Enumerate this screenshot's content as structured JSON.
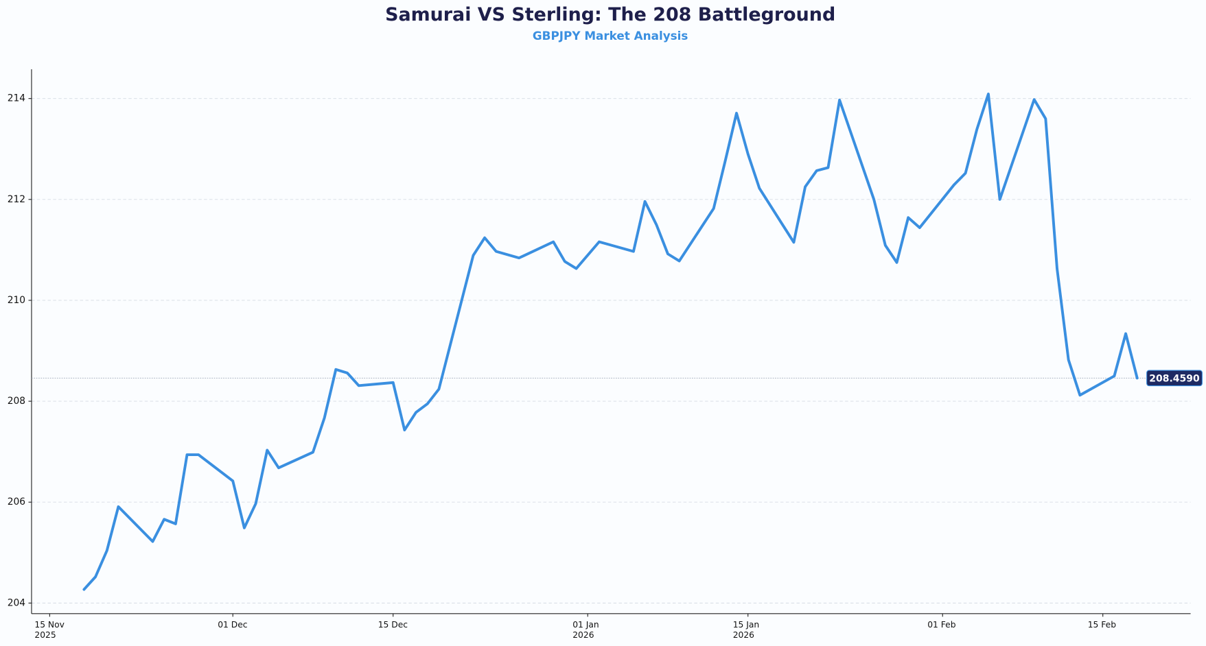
{
  "chart_data": {
    "type": "line",
    "title": "Samurai VS Sterling: The 208 Battleground",
    "subtitle": "GBPJPY Market Analysis",
    "color": "#3a8fe0",
    "x": [
      "2025-11-18",
      "2025-11-19",
      "2025-11-20",
      "2025-11-21",
      "2025-11-24",
      "2025-11-25",
      "2025-11-26",
      "2025-11-27",
      "2025-11-28",
      "2025-12-01",
      "2025-12-02",
      "2025-12-03",
      "2025-12-04",
      "2025-12-05",
      "2025-12-08",
      "2025-12-09",
      "2025-12-10",
      "2025-12-11",
      "2025-12-12",
      "2025-12-15",
      "2025-12-16",
      "2025-12-17",
      "2025-12-18",
      "2025-12-19",
      "2025-12-22",
      "2025-12-23",
      "2025-12-24",
      "2025-12-26",
      "2025-12-29",
      "2025-12-30",
      "2025-12-31",
      "2026-01-02",
      "2026-01-05",
      "2026-01-06",
      "2026-01-07",
      "2026-01-08",
      "2026-01-09",
      "2026-01-12",
      "2026-01-13",
      "2026-01-14",
      "2026-01-15",
      "2026-01-16",
      "2026-01-19",
      "2026-01-20",
      "2026-01-21",
      "2026-01-22",
      "2026-01-23",
      "2026-01-26",
      "2026-01-27",
      "2026-01-28",
      "2026-01-29",
      "2026-01-30",
      "2026-02-02",
      "2026-02-03",
      "2026-02-04",
      "2026-02-05",
      "2026-02-06",
      "2026-02-09",
      "2026-02-10",
      "2026-02-11",
      "2026-02-12",
      "2026-02-13",
      "2026-02-16",
      "2026-02-17",
      "2026-02-18"
    ],
    "values": [
      204.27,
      204.52,
      205.04,
      205.91,
      205.22,
      205.66,
      205.57,
      206.94,
      206.94,
      206.42,
      205.49,
      205.97,
      207.03,
      206.68,
      206.99,
      207.67,
      208.63,
      208.56,
      208.31,
      208.37,
      207.43,
      207.78,
      207.95,
      208.24,
      210.89,
      211.24,
      210.97,
      210.84,
      211.16,
      210.77,
      210.63,
      211.16,
      210.97,
      211.96,
      211.5,
      210.92,
      210.78,
      211.82,
      212.75,
      213.71,
      212.9,
      212.22,
      211.15,
      212.25,
      212.57,
      212.63,
      213.97,
      212.0,
      211.09,
      210.75,
      211.64,
      211.44,
      212.29,
      212.52,
      213.39,
      214.09,
      212.0,
      213.98,
      213.6,
      210.63,
      208.82,
      208.12,
      208.5,
      209.34,
      208.459
    ],
    "xlim": [
      "2025-11-13T10:00",
      "2026-02-22T16:00"
    ],
    "xticks": [
      {
        "value": "2025-11-15",
        "label": "15 Nov\n2025"
      },
      {
        "value": "2025-12-01",
        "label": "01 Dec"
      },
      {
        "value": "2025-12-15",
        "label": "15 Dec"
      },
      {
        "value": "2026-01-01",
        "label": "01 Jan\n2026"
      },
      {
        "value": "2026-01-15",
        "label": "15 Jan\n2026"
      },
      {
        "value": "2026-02-01",
        "label": "01 Feb"
      },
      {
        "value": "2026-02-15",
        "label": "15 Feb"
      }
    ],
    "ylim": [
      203.79,
      214.58
    ],
    "yticks": [
      204,
      206,
      208,
      210,
      212,
      214
    ],
    "grid": true,
    "annotations": [
      {
        "text": "208.4590",
        "value": 208.459
      }
    ]
  }
}
